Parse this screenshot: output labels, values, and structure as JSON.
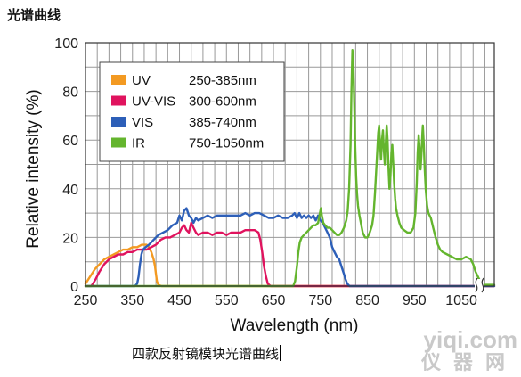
{
  "page": {
    "heading": "光谱曲线",
    "caption": "四款反射镜模块光谱曲线",
    "watermark_top": "yiqi.com",
    "watermark_bottom": "仪器网"
  },
  "chart_data": {
    "type": "line",
    "title": "",
    "xlabel": "Wavelength (nm)",
    "ylabel": "Relative intensity (%)",
    "xlim": [
      250,
      1120
    ],
    "ylim": [
      0,
      100
    ],
    "xticks": [
      250,
      350,
      450,
      550,
      650,
      750,
      850,
      950,
      1050
    ],
    "yticks": [
      0,
      20,
      40,
      60,
      80,
      100
    ],
    "grid": true,
    "axis_break": "x-max",
    "legend": {
      "placement": "top-left"
    },
    "series": [
      {
        "name": "UV",
        "range": "250-385nm",
        "color": "#f39a22",
        "points": [
          [
            250,
            1
          ],
          [
            260,
            4
          ],
          [
            270,
            7
          ],
          [
            280,
            9
          ],
          [
            290,
            11
          ],
          [
            300,
            12
          ],
          [
            310,
            13
          ],
          [
            320,
            14
          ],
          [
            330,
            15
          ],
          [
            340,
            15
          ],
          [
            350,
            16
          ],
          [
            360,
            16
          ],
          [
            370,
            17
          ],
          [
            380,
            17
          ],
          [
            385,
            16
          ],
          [
            390,
            14
          ],
          [
            395,
            11
          ],
          [
            398,
            8
          ],
          [
            400,
            5
          ],
          [
            402,
            2
          ],
          [
            405,
            0.5
          ],
          [
            412,
            0
          ],
          [
            1120,
            0
          ]
        ]
      },
      {
        "name": "UV-VIS",
        "range": "300-600nm",
        "color": "#e0135e",
        "points": [
          [
            250,
            0
          ],
          [
            262,
            0
          ],
          [
            266,
            1
          ],
          [
            272,
            3
          ],
          [
            280,
            6
          ],
          [
            290,
            9
          ],
          [
            300,
            11
          ],
          [
            310,
            12
          ],
          [
            320,
            13
          ],
          [
            330,
            13
          ],
          [
            340,
            14
          ],
          [
            350,
            14
          ],
          [
            360,
            15
          ],
          [
            370,
            15
          ],
          [
            380,
            15
          ],
          [
            390,
            16
          ],
          [
            400,
            17
          ],
          [
            410,
            19
          ],
          [
            420,
            20
          ],
          [
            430,
            20
          ],
          [
            440,
            21
          ],
          [
            450,
            22
          ],
          [
            455,
            24
          ],
          [
            460,
            25
          ],
          [
            465,
            23
          ],
          [
            470,
            22
          ],
          [
            475,
            26
          ],
          [
            480,
            24
          ],
          [
            485,
            22
          ],
          [
            490,
            21
          ],
          [
            500,
            22
          ],
          [
            510,
            22
          ],
          [
            520,
            21
          ],
          [
            530,
            22
          ],
          [
            540,
            22
          ],
          [
            550,
            21
          ],
          [
            560,
            22
          ],
          [
            570,
            22
          ],
          [
            580,
            22
          ],
          [
            590,
            23
          ],
          [
            600,
            23
          ],
          [
            610,
            23
          ],
          [
            618,
            22
          ],
          [
            622,
            19
          ],
          [
            626,
            14
          ],
          [
            630,
            8
          ],
          [
            634,
            4
          ],
          [
            638,
            1
          ],
          [
            644,
            0
          ],
          [
            1120,
            0
          ]
        ]
      },
      {
        "name": "VIS",
        "range": "385-740nm",
        "color": "#2d5fb8",
        "points": [
          [
            250,
            0
          ],
          [
            355,
            0
          ],
          [
            360,
            1
          ],
          [
            363,
            4
          ],
          [
            366,
            9
          ],
          [
            369,
            13
          ],
          [
            372,
            15
          ],
          [
            378,
            16
          ],
          [
            385,
            17
          ],
          [
            395,
            19
          ],
          [
            405,
            21
          ],
          [
            415,
            22
          ],
          [
            425,
            23
          ],
          [
            435,
            25
          ],
          [
            445,
            26
          ],
          [
            450,
            29
          ],
          [
            455,
            27
          ],
          [
            460,
            31
          ],
          [
            465,
            32
          ],
          [
            470,
            29
          ],
          [
            475,
            28
          ],
          [
            480,
            26
          ],
          [
            485,
            28
          ],
          [
            490,
            27
          ],
          [
            500,
            28
          ],
          [
            510,
            29
          ],
          [
            520,
            28
          ],
          [
            530,
            29
          ],
          [
            540,
            29
          ],
          [
            550,
            29
          ],
          [
            560,
            29
          ],
          [
            570,
            29
          ],
          [
            580,
            29
          ],
          [
            590,
            30
          ],
          [
            600,
            29
          ],
          [
            610,
            30
          ],
          [
            620,
            30
          ],
          [
            630,
            29
          ],
          [
            640,
            28
          ],
          [
            650,
            28
          ],
          [
            660,
            29
          ],
          [
            670,
            28
          ],
          [
            680,
            28
          ],
          [
            690,
            29
          ],
          [
            695,
            30
          ],
          [
            700,
            28
          ],
          [
            705,
            30
          ],
          [
            710,
            28
          ],
          [
            715,
            29
          ],
          [
            720,
            28
          ],
          [
            725,
            29
          ],
          [
            730,
            28
          ],
          [
            735,
            29
          ],
          [
            740,
            27
          ],
          [
            745,
            29
          ],
          [
            750,
            27
          ],
          [
            755,
            26
          ],
          [
            760,
            24
          ],
          [
            765,
            22
          ],
          [
            770,
            20
          ],
          [
            775,
            16
          ],
          [
            780,
            14
          ],
          [
            785,
            12
          ],
          [
            790,
            11
          ],
          [
            795,
            8
          ],
          [
            800,
            5
          ],
          [
            803,
            3
          ],
          [
            807,
            1
          ],
          [
            812,
            0
          ],
          [
            1120,
            0
          ]
        ]
      },
      {
        "name": "IR",
        "range": "750-1050nm",
        "color": "#64b52e",
        "points": [
          [
            250,
            0
          ],
          [
            692,
            0
          ],
          [
            696,
            2
          ],
          [
            700,
            8
          ],
          [
            703,
            14
          ],
          [
            706,
            18
          ],
          [
            710,
            20
          ],
          [
            715,
            21
          ],
          [
            720,
            22
          ],
          [
            725,
            23
          ],
          [
            730,
            24
          ],
          [
            735,
            25
          ],
          [
            740,
            25
          ],
          [
            745,
            26
          ],
          [
            748,
            29
          ],
          [
            751,
            32
          ],
          [
            753,
            29
          ],
          [
            756,
            26
          ],
          [
            760,
            25
          ],
          [
            765,
            24
          ],
          [
            770,
            24
          ],
          [
            775,
            23
          ],
          [
            780,
            22
          ],
          [
            785,
            21
          ],
          [
            790,
            21
          ],
          [
            795,
            22
          ],
          [
            800,
            24
          ],
          [
            805,
            27
          ],
          [
            808,
            31
          ],
          [
            811,
            40
          ],
          [
            814,
            58
          ],
          [
            816,
            80
          ],
          [
            818,
            97
          ],
          [
            820,
            92
          ],
          [
            822,
            75
          ],
          [
            824,
            58
          ],
          [
            826,
            45
          ],
          [
            828,
            38
          ],
          [
            830,
            33
          ],
          [
            833,
            29
          ],
          [
            836,
            26
          ],
          [
            840,
            22
          ],
          [
            845,
            20
          ],
          [
            850,
            20
          ],
          [
            855,
            22
          ],
          [
            860,
            25
          ],
          [
            863,
            29
          ],
          [
            866,
            38
          ],
          [
            870,
            52
          ],
          [
            873,
            63
          ],
          [
            875,
            66
          ],
          [
            877,
            58
          ],
          [
            879,
            52
          ],
          [
            881,
            60
          ],
          [
            883,
            64
          ],
          [
            885,
            56
          ],
          [
            887,
            50
          ],
          [
            889,
            58
          ],
          [
            891,
            66
          ],
          [
            893,
            60
          ],
          [
            895,
            48
          ],
          [
            897,
            40
          ],
          [
            899,
            45
          ],
          [
            901,
            55
          ],
          [
            903,
            58
          ],
          [
            905,
            50
          ],
          [
            907,
            42
          ],
          [
            909,
            36
          ],
          [
            911,
            32
          ],
          [
            914,
            29
          ],
          [
            918,
            26
          ],
          [
            922,
            24
          ],
          [
            928,
            23
          ],
          [
            935,
            22
          ],
          [
            942,
            22
          ],
          [
            948,
            24
          ],
          [
            952,
            30
          ],
          [
            955,
            42
          ],
          [
            957,
            55
          ],
          [
            959,
            62
          ],
          [
            961,
            57
          ],
          [
            963,
            48
          ],
          [
            965,
            54
          ],
          [
            967,
            63
          ],
          [
            968,
            66
          ],
          [
            970,
            58
          ],
          [
            972,
            48
          ],
          [
            974,
            40
          ],
          [
            977,
            33
          ],
          [
            980,
            30
          ],
          [
            985,
            28
          ],
          [
            990,
            24
          ],
          [
            995,
            20
          ],
          [
            1000,
            17
          ],
          [
            1005,
            15
          ],
          [
            1010,
            14
          ],
          [
            1020,
            13
          ],
          [
            1030,
            12
          ],
          [
            1040,
            11
          ],
          [
            1050,
            11
          ],
          [
            1060,
            12
          ],
          [
            1070,
            11
          ],
          [
            1075,
            9
          ],
          [
            1080,
            6
          ],
          [
            1085,
            4
          ],
          [
            1090,
            2
          ],
          [
            1094,
            1
          ],
          [
            1098,
            0.5
          ],
          [
            1120,
            0.5
          ]
        ]
      }
    ]
  }
}
